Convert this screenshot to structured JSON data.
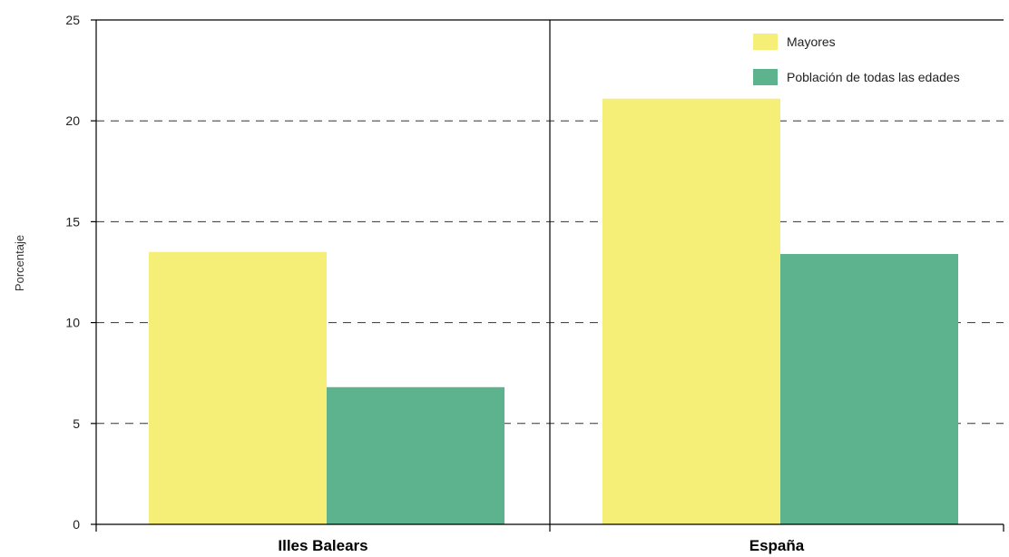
{
  "chart_data": {
    "type": "bar",
    "title": "",
    "xlabel": "",
    "ylabel": "Porcentaje",
    "categories": [
      "Illes Balears",
      "España"
    ],
    "series": [
      {
        "name": "Mayores",
        "values": [
          13.5,
          21.1
        ],
        "color": "#f5ef78"
      },
      {
        "name": "Población de todas las edades",
        "values": [
          6.8,
          13.4
        ],
        "color": "#5db38e"
      }
    ],
    "ylim": [
      0,
      25
    ],
    "yticks": [
      0,
      5,
      10,
      15,
      20,
      25
    ],
    "grid": true,
    "grid_style": "dashed",
    "legend_position": "top-right"
  }
}
